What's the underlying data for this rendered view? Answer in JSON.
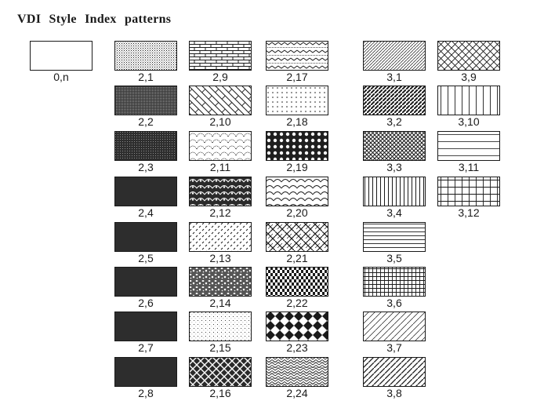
{
  "title": "VDI Style Index patterns",
  "swatches": [
    {
      "label": "0,n",
      "pattern": "hollow"
    },
    {
      "label": "2,1",
      "pattern": "dots-fine"
    },
    {
      "label": "2,2",
      "pattern": "dots-dark"
    },
    {
      "label": "2,3",
      "pattern": "dots-darker"
    },
    {
      "label": "2,4",
      "pattern": "solid"
    },
    {
      "label": "2,5",
      "pattern": "solid"
    },
    {
      "label": "2,6",
      "pattern": "solid"
    },
    {
      "label": "2,7",
      "pattern": "solid"
    },
    {
      "label": "2,8",
      "pattern": "solid"
    },
    {
      "label": "2,9",
      "pattern": "bricks"
    },
    {
      "label": "2,10",
      "pattern": "diagonal-bricks"
    },
    {
      "label": "2,11",
      "pattern": "scallops-dotted"
    },
    {
      "label": "2,12",
      "pattern": "scales-solid"
    },
    {
      "label": "2,13",
      "pattern": "diagonal-dashes"
    },
    {
      "label": "2,14",
      "pattern": "pebbles"
    },
    {
      "label": "2,15",
      "pattern": "dots-sparse"
    },
    {
      "label": "2,16",
      "pattern": "weave"
    },
    {
      "label": "2,17",
      "pattern": "zigzag-waves"
    },
    {
      "label": "2,18",
      "pattern": "dot-grid"
    },
    {
      "label": "2,19",
      "pattern": "circles-on-dark"
    },
    {
      "label": "2,20",
      "pattern": "scales-outline"
    },
    {
      "label": "2,21",
      "pattern": "basket-weave"
    },
    {
      "label": "2,22",
      "pattern": "zigzag-bars"
    },
    {
      "label": "2,23",
      "pattern": "diamonds"
    },
    {
      "label": "2,24",
      "pattern": "herringbone"
    },
    {
      "label": "3,1",
      "pattern": "diagonal-fine"
    },
    {
      "label": "3,2",
      "pattern": "diagonal-thick"
    },
    {
      "label": "3,3",
      "pattern": "crosshatch-dense"
    },
    {
      "label": "3,4",
      "pattern": "vertical-lines"
    },
    {
      "label": "3,5",
      "pattern": "horizontal-lines"
    },
    {
      "label": "3,6",
      "pattern": "grid-dense"
    },
    {
      "label": "3,7",
      "pattern": "diagonal-sparse"
    },
    {
      "label": "3,8",
      "pattern": "diagonal-medium"
    },
    {
      "label": "3,9",
      "pattern": "crosshatch-diagonal"
    },
    {
      "label": "3,10",
      "pattern": "vertical-sparse"
    },
    {
      "label": "3,11",
      "pattern": "horizontal-sparse"
    },
    {
      "label": "3,12",
      "pattern": "grid-sparse"
    }
  ]
}
